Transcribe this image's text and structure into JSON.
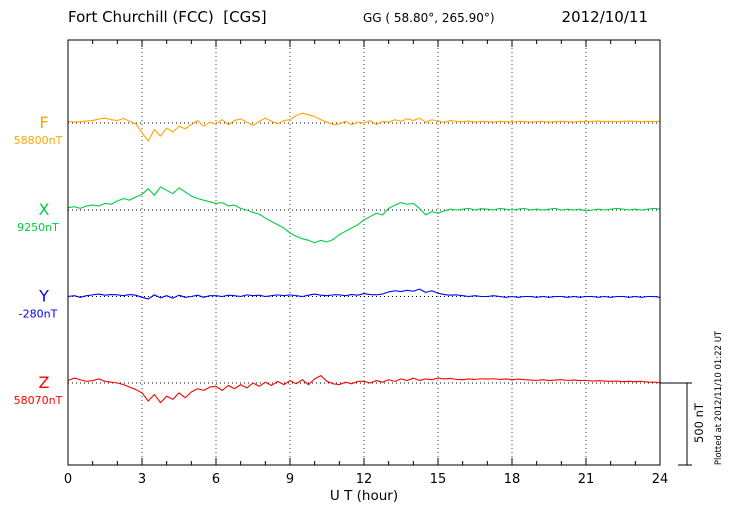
{
  "header": {
    "station_title": "Fort Churchill (FCC)  [CGS]",
    "gg_coords": "GG ( 58.80°, 265.90°)",
    "date": "2012/10/11"
  },
  "footer_note": "Plotted at 2012/11/10 01:22 UT",
  "scale_bar": {
    "label": "500 nT",
    "span_nT": 500
  },
  "chart_data": {
    "type": "line",
    "title": "Fort Churchill (FCC) magnetogram, 2012/10/11",
    "xlabel": "U T (hour)",
    "x_range": [
      0,
      24
    ],
    "x_major_ticks": [
      0,
      3,
      6,
      9,
      12,
      15,
      18,
      21,
      24
    ],
    "x_step_hours": 0.25,
    "grid": "dotted vertical lines at 3-hour marks; dotted horizontal baseline for each trace",
    "scale_nT_per_bar": 500,
    "note": "absolute value at sample i = baseline_nT + deviation_nT[i]; samples every 0.25 h from 0 to 24 UT",
    "series": [
      {
        "id": "F",
        "label": "F",
        "baseline_label": "58800nT",
        "baseline_nT": 58800,
        "color": "#FFA500",
        "deviation_nT": [
          10,
          5,
          8,
          12,
          15,
          25,
          30,
          20,
          15,
          28,
          10,
          -5,
          -60,
          -110,
          -40,
          -80,
          -30,
          -55,
          -20,
          -35,
          -10,
          15,
          -20,
          5,
          -5,
          20,
          -10,
          15,
          25,
          5,
          -15,
          10,
          30,
          10,
          -5,
          15,
          20,
          45,
          60,
          50,
          40,
          20,
          5,
          -10,
          -5,
          10,
          -10,
          5,
          0,
          15,
          -10,
          10,
          5,
          20,
          10,
          25,
          15,
          30,
          5,
          20,
          10,
          5,
          15,
          10,
          8,
          12,
          6,
          10,
          8,
          6,
          10,
          8,
          6,
          10,
          8,
          6,
          8,
          10,
          6,
          8,
          10,
          8,
          6,
          10,
          8,
          10,
          12,
          8,
          10,
          8,
          10,
          12,
          10,
          8,
          10,
          8,
          10
        ]
      },
      {
        "id": "X",
        "label": "X",
        "baseline_label": "9250nT",
        "baseline_nT": 9250,
        "color": "#00CC44",
        "deviation_nT": [
          15,
          20,
          10,
          25,
          30,
          25,
          40,
          35,
          55,
          70,
          60,
          80,
          95,
          130,
          90,
          140,
          120,
          100,
          135,
          110,
          85,
          70,
          60,
          50,
          40,
          45,
          25,
          30,
          10,
          0,
          -15,
          -25,
          -50,
          -70,
          -90,
          -110,
          -140,
          -160,
          -175,
          -185,
          -200,
          -185,
          -195,
          -180,
          -150,
          -130,
          -110,
          -90,
          -60,
          -40,
          -20,
          -30,
          10,
          30,
          45,
          35,
          40,
          10,
          -30,
          -10,
          -20,
          -5,
          5,
          0,
          5,
          10,
          0,
          8,
          5,
          0,
          10,
          5,
          0,
          5,
          10,
          0,
          5,
          0,
          5,
          10,
          0,
          5,
          0,
          5,
          -5,
          0,
          5,
          0,
          5,
          10,
          5,
          0,
          5,
          0,
          5,
          10,
          5
        ]
      },
      {
        "id": "Y",
        "label": "Y",
        "baseline_label": "-280nT",
        "baseline_nT": -280,
        "color": "#0000FF",
        "deviation_nT": [
          0,
          5,
          -5,
          5,
          10,
          15,
          8,
          12,
          10,
          5,
          12,
          8,
          -5,
          -15,
          10,
          -8,
          5,
          -10,
          8,
          -5,
          0,
          8,
          -5,
          5,
          5,
          0,
          8,
          5,
          0,
          10,
          5,
          8,
          0,
          5,
          10,
          5,
          10,
          5,
          0,
          8,
          15,
          8,
          5,
          10,
          10,
          5,
          12,
          8,
          18,
          12,
          10,
          15,
          28,
          35,
          30,
          38,
          32,
          45,
          25,
          35,
          20,
          12,
          8,
          10,
          5,
          0,
          5,
          0,
          0,
          5,
          0,
          -5,
          0,
          -5,
          0,
          0,
          -5,
          0,
          -5,
          0,
          0,
          -5,
          0,
          -5,
          0,
          0,
          -5,
          0,
          -5,
          0,
          0,
          -5,
          0,
          -5,
          0,
          0,
          -5
        ]
      },
      {
        "id": "Z",
        "label": "Z",
        "baseline_label": "58070nT",
        "baseline_nT": 58070,
        "color": "#FF0000",
        "deviation_nT": [
          15,
          30,
          20,
          10,
          15,
          25,
          10,
          5,
          0,
          -10,
          -25,
          -40,
          -60,
          -110,
          -70,
          -120,
          -80,
          -100,
          -60,
          -90,
          -55,
          -35,
          -45,
          -25,
          -20,
          -45,
          -15,
          -35,
          -10,
          -30,
          0,
          -20,
          5,
          -15,
          10,
          -10,
          15,
          -5,
          20,
          -10,
          25,
          45,
          10,
          -5,
          -10,
          5,
          -5,
          10,
          10,
          0,
          15,
          5,
          20,
          10,
          25,
          15,
          30,
          15,
          25,
          20,
          30,
          25,
          28,
          22,
          20,
          25,
          22,
          26,
          24,
          26,
          22,
          25,
          20,
          24,
          20,
          18,
          16,
          20,
          15,
          18,
          20,
          16,
          18,
          15,
          16,
          12,
          14,
          12,
          10,
          12,
          8,
          10,
          8,
          10,
          6,
          5,
          2
        ]
      }
    ]
  }
}
